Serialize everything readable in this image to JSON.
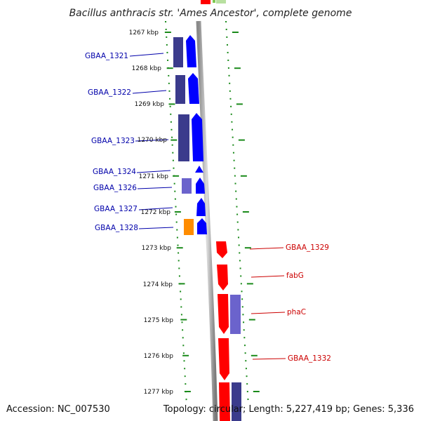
{
  "title": "Bacillus anthracis str. 'Ames Ancestor', complete genome",
  "accession": "Accession: NC_007530",
  "topology": "Topology: circular; Length: 5,227,419 bp; Genes: 5,336",
  "colors": {
    "forward": "#0000ff",
    "reverse": "#ff0000",
    "left_label": "#0000aa",
    "right_label": "#cc0000",
    "ruler": "#1a8a1a"
  },
  "ruler": {
    "ticks": [
      "1267 kbp",
      "1268 kbp",
      "1269 kbp",
      "1270 kbp",
      "1271 kbp",
      "1272 kbp",
      "1273 kbp",
      "1274 kbp",
      "1275 kbp",
      "1276 kbp",
      "1277 kbp"
    ]
  },
  "genes": {
    "left": [
      "GBAA_1321",
      "GBAA_1322",
      "GBAA_1323",
      "GBAA_1324",
      "GBAA_1326",
      "GBAA_1327",
      "GBAA_1328"
    ],
    "right": [
      "GBAA_1329",
      "fabG",
      "phaC",
      "GBAA_1332"
    ]
  }
}
